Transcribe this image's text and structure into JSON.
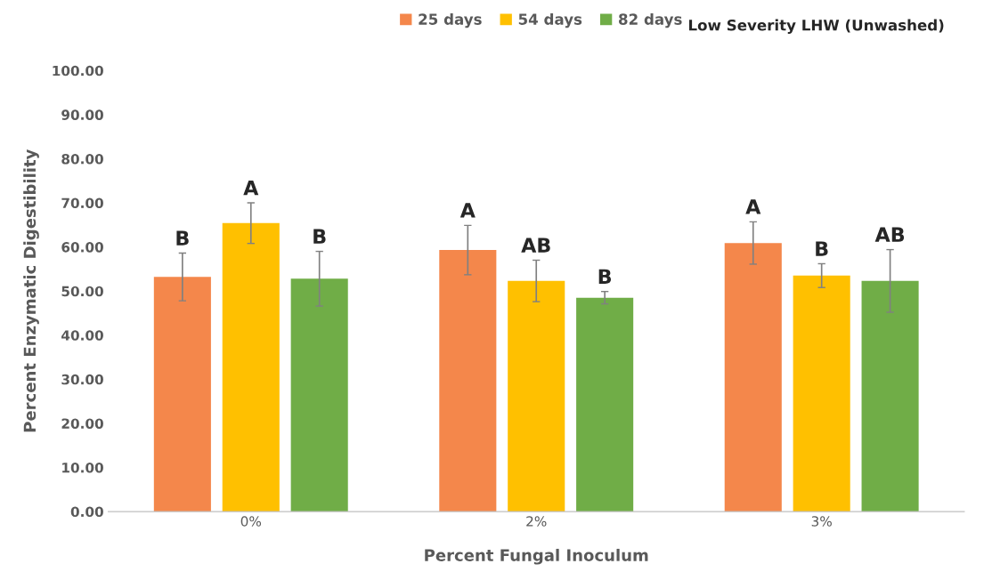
{
  "chart_data": {
    "type": "bar",
    "title": "Low Severity LHW (Unwashed)",
    "xlabel": "Percent Fungal Inoculum",
    "ylabel": "Percent Enzymatic Digestibility",
    "categories": [
      "0%",
      "2%",
      "3%"
    ],
    "series": [
      {
        "name": "25 days",
        "color": "#f4874b",
        "values": [
          53.2,
          59.3,
          60.9
        ],
        "errors": [
          5.4,
          5.6,
          4.8
        ],
        "value_labels": [
          "B",
          "A",
          "A"
        ]
      },
      {
        "name": "54 days",
        "color": "#ffc000",
        "values": [
          65.4,
          52.3,
          53.5
        ],
        "errors": [
          4.6,
          4.7,
          2.7
        ],
        "value_labels": [
          "A",
          "AB",
          "B"
        ]
      },
      {
        "name": "82 days",
        "color": "#70ad47",
        "values": [
          52.8,
          48.5,
          52.3
        ],
        "errors": [
          6.2,
          1.4,
          7.1
        ],
        "value_labels": [
          "B",
          "B",
          "AB"
        ]
      }
    ],
    "ylim": [
      0,
      100
    ],
    "yticks": [
      {
        "value": 0,
        "label": "0.00"
      },
      {
        "value": 10,
        "label": "10.00"
      },
      {
        "value": 20,
        "label": "20.00"
      },
      {
        "value": 30,
        "label": "30.00"
      },
      {
        "value": 40,
        "label": "40.00"
      },
      {
        "value": 50,
        "label": "50.00"
      },
      {
        "value": 60,
        "label": "60.00"
      },
      {
        "value": 70,
        "label": "70.00"
      },
      {
        "value": 80,
        "label": "80.00"
      },
      {
        "value": 90,
        "label": "90.00"
      },
      {
        "value": 100,
        "label": "100.00"
      }
    ],
    "legend": "top",
    "grid": false
  }
}
